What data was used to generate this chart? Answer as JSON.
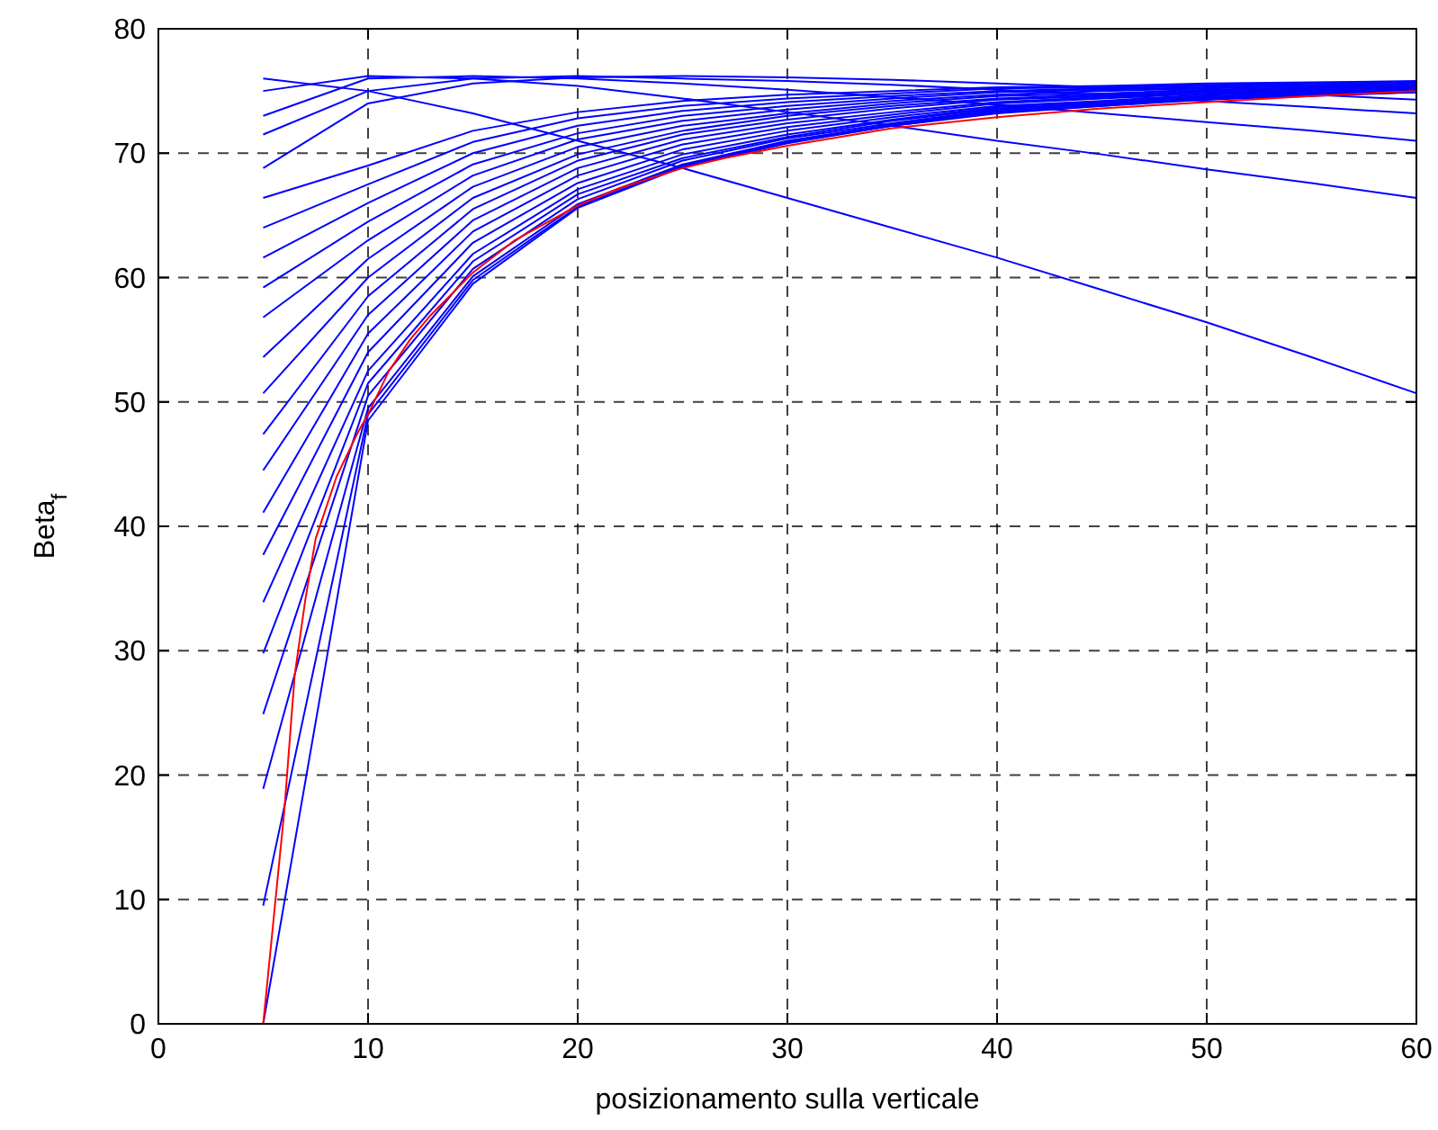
{
  "chart_data": {
    "type": "line",
    "xlabel": "posizionamento sulla verticale",
    "ylabel": "Beta$_{f}$",
    "xlim": [
      0,
      60
    ],
    "ylim": [
      0,
      80
    ],
    "xticks": [
      0,
      10,
      20,
      30,
      40,
      50,
      60
    ],
    "yticks": [
      0,
      10,
      20,
      30,
      40,
      50,
      60,
      70,
      80
    ],
    "grid": true,
    "line_style": "solid",
    "marker": "none",
    "x": [
      5,
      10,
      15,
      20,
      25,
      30,
      35,
      40,
      45,
      50,
      55,
      60
    ],
    "series": [
      {
        "color": "#0000ff",
        "values": [
          0,
          48.5,
          59.5,
          65.6,
          68.9,
          70.8,
          72.2,
          73.2,
          73.8,
          74.3,
          74.6,
          74.9
        ]
      },
      {
        "color": "#0000ff",
        "values": [
          9.5,
          49,
          59.8,
          65.7,
          69.0,
          70.9,
          72.2,
          73.3,
          73.8,
          74.4,
          74.7,
          74.9
        ]
      },
      {
        "color": "#0000ff",
        "values": [
          18.9,
          49.5,
          60.1,
          65.9,
          69.1,
          71.0,
          72.3,
          73.4,
          73.9,
          74.4,
          74.7,
          74.9
        ]
      },
      {
        "color": "#0000ff",
        "values": [
          24.9,
          50.5,
          60.7,
          66.3,
          69.4,
          71.2,
          72.4,
          73.5,
          74.0,
          74.5,
          74.7,
          75.0
        ]
      },
      {
        "color": "#0000ff",
        "values": [
          29.8,
          51.5,
          61.3,
          66.7,
          69.6,
          71.3,
          72.6,
          73.6,
          74.0,
          74.5,
          74.8,
          75.0
        ]
      },
      {
        "color": "#0000ff",
        "values": [
          33.9,
          52.5,
          61.9,
          67.1,
          69.9,
          71.5,
          72.7,
          73.7,
          74.1,
          74.6,
          74.8,
          75.1
        ]
      },
      {
        "color": "#0000ff",
        "values": [
          37.7,
          54,
          62.8,
          67.6,
          70.3,
          71.8,
          72.9,
          73.8,
          74.2,
          74.7,
          74.9,
          75.1
        ]
      },
      {
        "color": "#0000ff",
        "values": [
          41.1,
          55.5,
          63.7,
          68.2,
          70.7,
          72.1,
          73.1,
          74.0,
          74.4,
          74.8,
          75.0,
          75.2
        ]
      },
      {
        "color": "#0000ff",
        "values": [
          44.5,
          57,
          64.6,
          68.8,
          71.1,
          72.4,
          73.3,
          74.1,
          74.5,
          74.9,
          75.1,
          75.2
        ]
      },
      {
        "color": "#0000ff",
        "values": [
          47.4,
          58.5,
          65.5,
          69.4,
          71.5,
          72.7,
          73.6,
          74.3,
          74.6,
          75.0,
          75.1,
          75.3
        ]
      },
      {
        "color": "#0000ff",
        "values": [
          50.7,
          60,
          66.4,
          69.9,
          71.8,
          73.0,
          73.8,
          74.4,
          74.7,
          75.0,
          75.2,
          75.4
        ]
      },
      {
        "color": "#0000ff",
        "values": [
          53.6,
          61.5,
          67.3,
          70.5,
          72.2,
          73.2,
          74.0,
          74.6,
          74.8,
          75.1,
          75.3,
          75.4
        ]
      },
      {
        "color": "#0000ff",
        "values": [
          56.8,
          63,
          68.2,
          71.1,
          72.6,
          73.5,
          74.2,
          74.7,
          75.0,
          75.2,
          75.4,
          75.5
        ]
      },
      {
        "color": "#0000ff",
        "values": [
          59.2,
          64.5,
          69.1,
          71.6,
          73.0,
          73.8,
          74.4,
          74.9,
          75.1,
          75.3,
          75.4,
          75.5
        ]
      },
      {
        "color": "#0000ff",
        "values": [
          61.6,
          66,
          70.0,
          72.2,
          73.4,
          74.1,
          74.6,
          75.0,
          75.2,
          75.4,
          75.5,
          75.6
        ]
      },
      {
        "color": "#0000ff",
        "values": [
          64.0,
          67.5,
          70.9,
          72.8,
          73.8,
          74.4,
          74.8,
          75.2,
          75.3,
          75.5,
          75.6,
          75.7
        ]
      },
      {
        "color": "#0000ff",
        "values": [
          66.4,
          69,
          71.8,
          73.3,
          74.2,
          74.7,
          75.0,
          75.3,
          75.4,
          75.6,
          75.7,
          75.8
        ]
      },
      {
        "color": "#0000ff",
        "values": [
          68.8,
          74,
          75.6,
          76.1,
          76.2,
          76.1,
          75.9,
          75.6,
          75.3,
          75,
          74.7,
          74.3
        ]
      },
      {
        "color": "#0000ff",
        "values": [
          71.5,
          75,
          76,
          76.2,
          76,
          75.8,
          75.5,
          75.1,
          74.7,
          74.2,
          73.7,
          73.2
        ]
      },
      {
        "color": "#0000ff",
        "values": [
          73,
          76,
          76.2,
          76,
          75.6,
          75.1,
          74.5,
          73.9,
          73.2,
          72.5,
          71.8,
          71.0
        ]
      },
      {
        "color": "#0000ff",
        "values": [
          75,
          76.2,
          76,
          75.4,
          74.4,
          73.3,
          72.2,
          71,
          69.9,
          68.7,
          67.6,
          66.4
        ]
      },
      {
        "color": "#0000ff",
        "values": [
          76,
          75,
          73.2,
          71,
          68.8,
          66.4,
          64,
          61.6,
          59,
          56.4,
          53.6,
          50.7
        ]
      },
      {
        "color": "#ff0000",
        "x": [
          5,
          6,
          6.5,
          7,
          7.5,
          8.5,
          9.5,
          10,
          11,
          12,
          13,
          15,
          17,
          20,
          22,
          25,
          27,
          30,
          35,
          40,
          45,
          50,
          55,
          60
        ],
        "values": [
          0,
          17,
          28,
          34,
          39,
          44,
          47.5,
          49,
          52.5,
          55,
          57,
          60.4,
          63,
          65.8,
          67.2,
          68.8,
          69.6,
          70.6,
          72.0,
          72.9,
          73.6,
          74.1,
          74.6,
          75.0
        ]
      }
    ]
  }
}
